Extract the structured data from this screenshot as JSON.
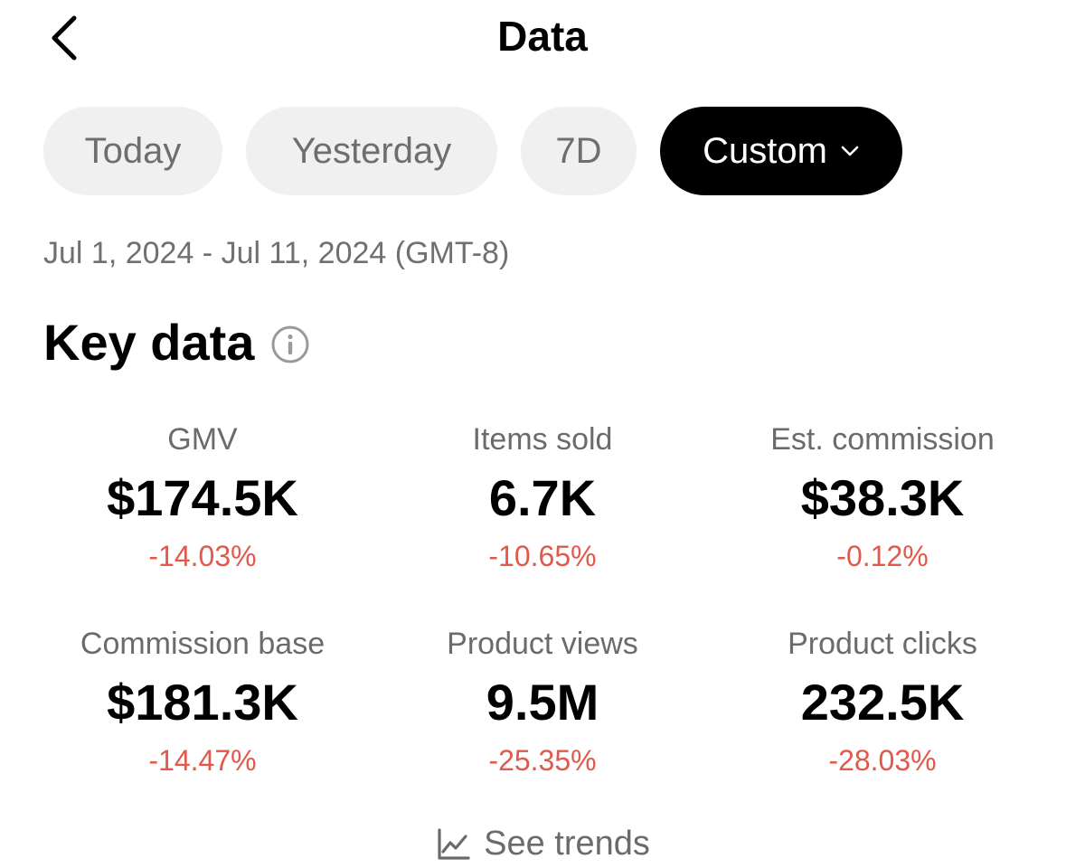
{
  "header": {
    "title": "Data",
    "back_icon": "chevron-left-icon"
  },
  "tabs": [
    {
      "label": "Today",
      "active": false
    },
    {
      "label": "Yesterday",
      "active": false
    },
    {
      "label": "7D",
      "active": false
    },
    {
      "label": "Custom",
      "active": true,
      "icon": "chevron-down-icon"
    }
  ],
  "date_range": "Jul 1, 2024 - Jul 11, 2024 (GMT-8)",
  "key_data": {
    "title": "Key data",
    "info_icon": "info-icon",
    "metrics": [
      {
        "label": "GMV",
        "value": "$174.5K",
        "change": "-14.03%"
      },
      {
        "label": "Items sold",
        "value": "6.7K",
        "change": "-10.65%"
      },
      {
        "label": "Est. commission",
        "value": "$38.3K",
        "change": "-0.12%"
      },
      {
        "label": "Commission base",
        "value": "$181.3K",
        "change": "-14.47%"
      },
      {
        "label": "Product views",
        "value": "9.5M",
        "change": "-25.35%"
      },
      {
        "label": "Product clicks",
        "value": "232.5K",
        "change": "-28.03%"
      }
    ]
  },
  "see_trends": {
    "label": "See trends",
    "icon": "line-chart-icon"
  },
  "colors": {
    "negative_change": "#e2584a",
    "active_tab_bg": "#000000",
    "inactive_tab_bg": "#f0f0f0"
  }
}
